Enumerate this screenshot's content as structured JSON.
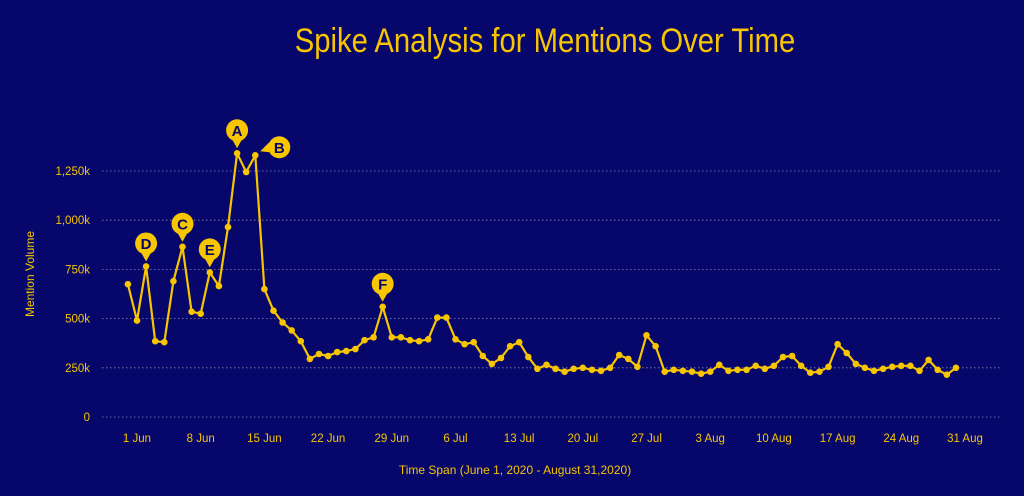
{
  "title": "Spike Analysis for Mentions Over Time",
  "colors": {
    "background": "#06066b",
    "accent": "#f7c600",
    "grid": "#8a8ab8"
  },
  "chart_data": {
    "type": "line",
    "title": "Spike Analysis for Mentions Over Time",
    "xlabel": "Time Span (June 1, 2020 - August 31,2020)",
    "ylabel": "Mention Volume",
    "ylim": [
      0,
      1375000
    ],
    "grid": true,
    "y_ticks": [
      {
        "value": 0,
        "label": "0"
      },
      {
        "value": 250000,
        "label": "250k"
      },
      {
        "value": 500000,
        "label": "500k"
      },
      {
        "value": 750000,
        "label": "750k"
      },
      {
        "value": 1000000,
        "label": "1,000k"
      },
      {
        "value": 1250000,
        "label": "1,250k"
      }
    ],
    "x_ticks": [
      {
        "date": "2020-06-01",
        "label": "1 Jun"
      },
      {
        "date": "2020-06-08",
        "label": "8 Jun"
      },
      {
        "date": "2020-06-15",
        "label": "15 Jun"
      },
      {
        "date": "2020-06-22",
        "label": "22 Jun"
      },
      {
        "date": "2020-06-29",
        "label": "29 Jun"
      },
      {
        "date": "2020-07-06",
        "label": "6 Jul"
      },
      {
        "date": "2020-07-13",
        "label": "13 Jul"
      },
      {
        "date": "2020-07-20",
        "label": "20 Jul"
      },
      {
        "date": "2020-07-27",
        "label": "27 Jul"
      },
      {
        "date": "2020-08-03",
        "label": "3 Aug"
      },
      {
        "date": "2020-08-10",
        "label": "10 Aug"
      },
      {
        "date": "2020-08-17",
        "label": "17 Aug"
      },
      {
        "date": "2020-08-24",
        "label": "24 Aug"
      },
      {
        "date": "2020-08-31",
        "label": "31 Aug"
      }
    ],
    "series": [
      {
        "start_date": "2020-05-31",
        "values": [
          675000,
          490000,
          765000,
          385000,
          380000,
          690000,
          865000,
          535000,
          525000,
          735000,
          665000,
          965000,
          1340000,
          1245000,
          1330000,
          650000,
          540000,
          480000,
          440000,
          385000,
          295000,
          320000,
          310000,
          330000,
          335000,
          345000,
          390000,
          405000,
          560000,
          405000,
          405000,
          390000,
          385000,
          395000,
          505000,
          505000,
          395000,
          370000,
          380000,
          310000,
          270000,
          300000,
          360000,
          380000,
          305000,
          245000,
          265000,
          245000,
          230000,
          245000,
          250000,
          240000,
          235000,
          250000,
          315000,
          295000,
          255000,
          415000,
          360000,
          230000,
          240000,
          235000,
          230000,
          220000,
          230000,
          265000,
          235000,
          240000,
          240000,
          260000,
          245000,
          260000,
          305000,
          310000,
          260000,
          225000,
          230000,
          255000,
          370000,
          325000,
          270000,
          250000,
          235000,
          245000,
          255000,
          260000,
          260000,
          235000,
          290000,
          240000,
          215000,
          250000
        ]
      }
    ],
    "annotations": [
      {
        "label": "A",
        "date": "2020-06-12",
        "value": 1340000
      },
      {
        "label": "B",
        "date": "2020-06-14",
        "value": 1330000
      },
      {
        "label": "C",
        "date": "2020-06-06",
        "value": 865000
      },
      {
        "label": "D",
        "date": "2020-06-02",
        "value": 765000
      },
      {
        "label": "E",
        "date": "2020-06-09",
        "value": 735000
      },
      {
        "label": "F",
        "date": "2020-06-28",
        "value": 560000
      }
    ]
  }
}
